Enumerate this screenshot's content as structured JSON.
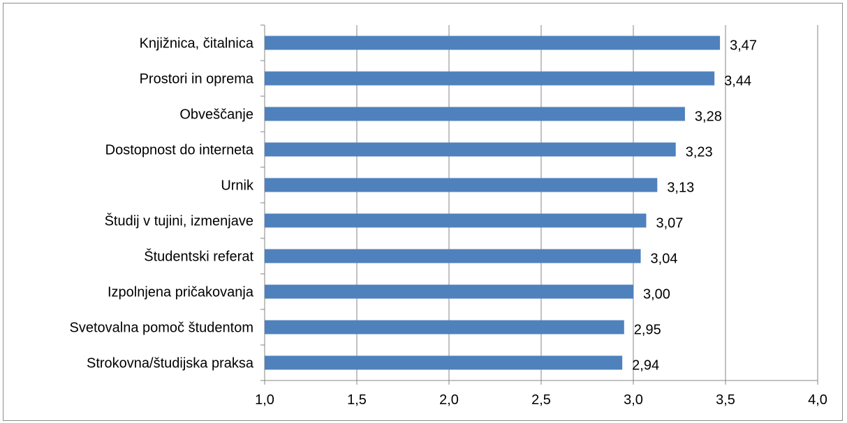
{
  "chart_data": {
    "type": "bar",
    "orientation": "horizontal",
    "title": "",
    "xlabel": "",
    "ylabel": "",
    "categories": [
      "Knjižnica, čitalnica",
      "Prostori in oprema",
      "Obveščanje",
      "Dostopnost do interneta",
      "Urnik",
      "Študij v tujini, izmenjave",
      "Študentski referat ",
      "Izpolnjena pričakovanja",
      "Svetovalna pomoč študentom",
      "Strokovna/študijska praksa"
    ],
    "values": [
      3.47,
      3.44,
      3.28,
      3.23,
      3.13,
      3.07,
      3.04,
      3.0,
      2.95,
      2.94
    ],
    "value_labels": [
      "3,47",
      "3,44",
      "3,28",
      "3,23",
      "3,13",
      "3,07",
      "3,04",
      "3,00",
      "2,95",
      "2,94"
    ],
    "xlim": [
      1.0,
      4.0
    ],
    "x_ticks": [
      1.0,
      1.5,
      2.0,
      2.5,
      3.0,
      3.5,
      4.0
    ],
    "x_tick_labels": [
      "1,0",
      "1,5",
      "2,0",
      "2,5",
      "3,0",
      "3,5",
      "4,0"
    ],
    "grid": true,
    "legend": "none",
    "colors": {
      "bar": "#4f81bd",
      "grid": "#868686",
      "axis": "#868686",
      "text": "#000000",
      "border": "#8c8c8c"
    }
  }
}
